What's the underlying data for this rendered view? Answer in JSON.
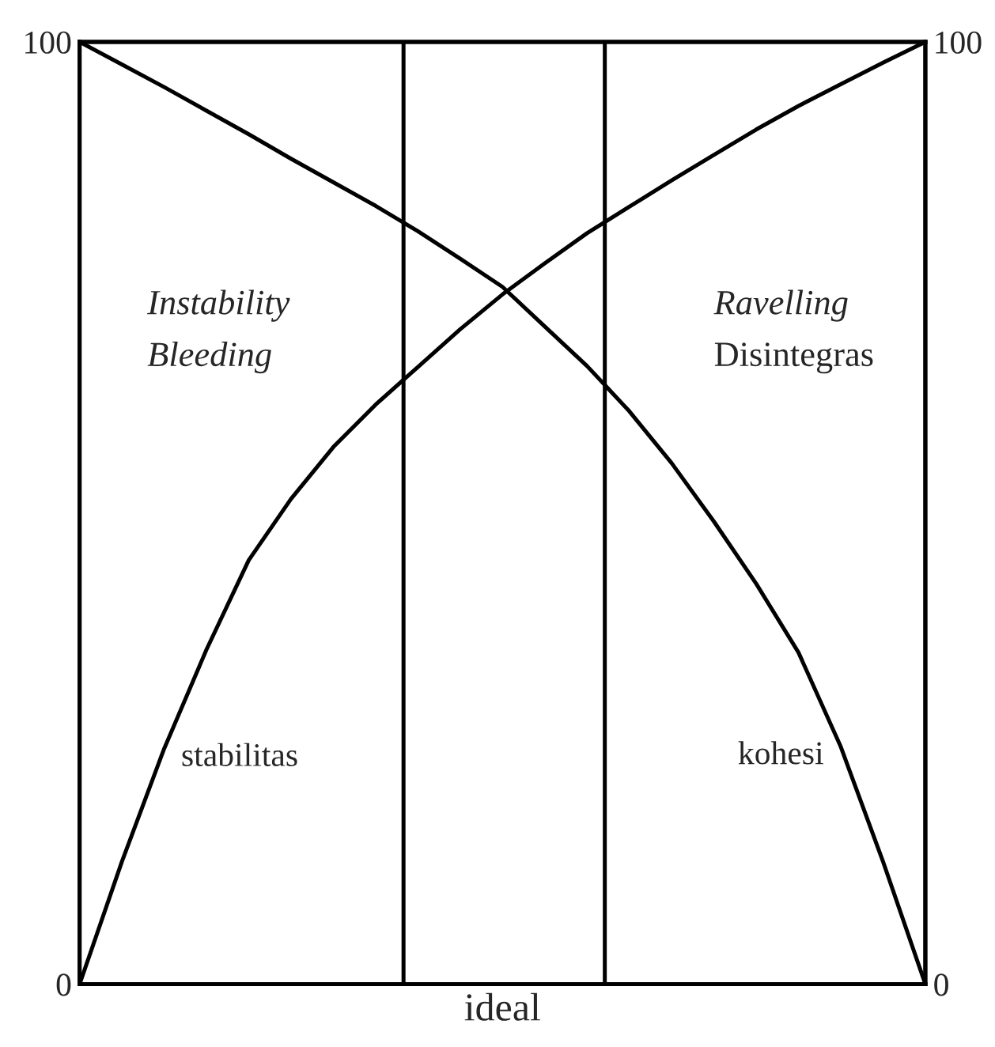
{
  "chart_data": {
    "type": "line",
    "xlabel": "ideal",
    "categories": [
      null,
      null,
      null,
      null,
      null,
      null,
      null,
      null,
      null,
      null,
      null,
      null,
      null,
      null,
      null,
      null,
      null,
      null,
      null,
      null,
      null
    ],
    "ylim": [
      0,
      100
    ],
    "yticks": [
      0,
      100
    ],
    "y2lim": [
      0,
      100
    ],
    "y2ticks": [
      0,
      100
    ],
    "tick_labels": "y",
    "legend": false,
    "marker": "none",
    "line_style": "solid",
    "series": [
      {
        "name": "stabilitas",
        "color": "#000000",
        "values": [
          0,
          13,
          25,
          35.5,
          45,
          51.5,
          57,
          61.5,
          65.5,
          69.5,
          73.2,
          76.5,
          79.7,
          82.5,
          85.3,
          88,
          90.7,
          93.2,
          95.5,
          97.8,
          100
        ]
      },
      {
        "name": "kohesi",
        "color": "#000000",
        "axis": "y2",
        "values": [
          100,
          97.6,
          95.2,
          92.7,
          90.2,
          87.6,
          85.1,
          82.6,
          79.9,
          77,
          74,
          69.8,
          65.6,
          60.8,
          55.3,
          49.1,
          42.5,
          35.2,
          25.2,
          13,
          0
        ]
      }
    ],
    "annotations": [
      "Instability",
      "Bleeding",
      "Ravelling",
      "Disintegras"
    ]
  }
}
